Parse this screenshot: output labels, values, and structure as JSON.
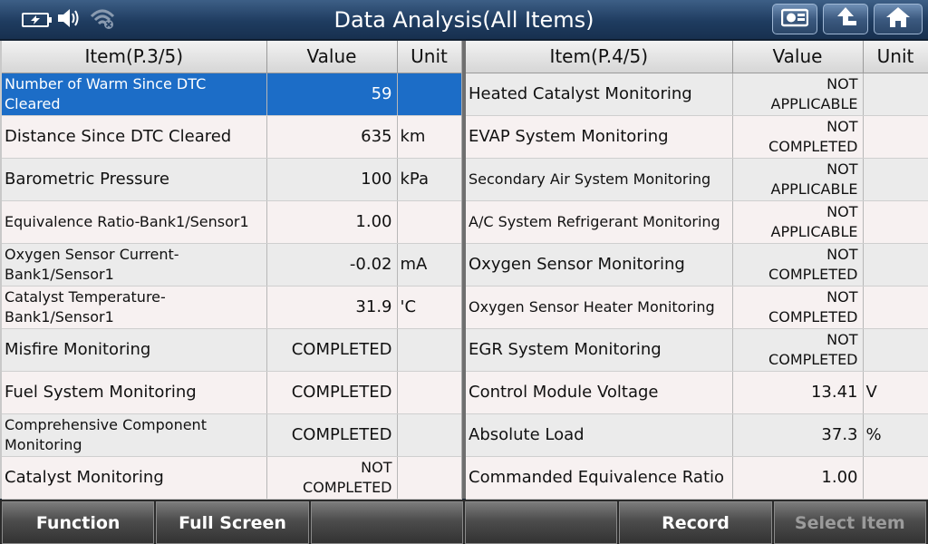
{
  "header": {
    "title": "Data Analysis(All Items)"
  },
  "left": {
    "columns": [
      "Item(P.3/5)",
      "Value",
      "Unit"
    ],
    "rows": [
      {
        "item": "Number of Warm Since DTC Cleared",
        "value": "59",
        "unit": ""
      },
      {
        "item": "Distance Since DTC Cleared",
        "value": "635",
        "unit": "km"
      },
      {
        "item": "Barometric Pressure",
        "value": "100",
        "unit": "kPa"
      },
      {
        "item": "Equivalence Ratio-Bank1/Sensor1",
        "value": "1.00",
        "unit": ""
      },
      {
        "item": "Oxygen Sensor Current-Bank1/Sensor1",
        "value": "-0.02",
        "unit": "mA"
      },
      {
        "item": "Catalyst Temperature-Bank1/Sensor1",
        "value": "31.9",
        "unit": "'C"
      },
      {
        "item": "Misfire Monitoring",
        "value": "COMPLETED",
        "unit": ""
      },
      {
        "item": "Fuel System Monitoring",
        "value": "COMPLETED",
        "unit": ""
      },
      {
        "item": "Comprehensive Component Monitoring",
        "value": "COMPLETED",
        "unit": ""
      },
      {
        "item": "Catalyst Monitoring",
        "value": "NOT COMPLETED",
        "unit": ""
      }
    ]
  },
  "right": {
    "columns": [
      "Item(P.4/5)",
      "Value",
      "Unit"
    ],
    "rows": [
      {
        "item": "Heated Catalyst Monitoring",
        "value": "NOT APPLICABLE",
        "unit": ""
      },
      {
        "item": "EVAP System Monitoring",
        "value": "NOT COMPLETED",
        "unit": ""
      },
      {
        "item": "Secondary Air System Monitoring",
        "value": "NOT APPLICABLE",
        "unit": ""
      },
      {
        "item": "A/C System Refrigerant Monitoring",
        "value": "NOT APPLICABLE",
        "unit": ""
      },
      {
        "item": "Oxygen Sensor Monitoring",
        "value": "NOT COMPLETED",
        "unit": ""
      },
      {
        "item": "Oxygen Sensor Heater Monitoring",
        "value": "NOT COMPLETED",
        "unit": ""
      },
      {
        "item": "EGR System Monitoring",
        "value": "NOT COMPLETED",
        "unit": ""
      },
      {
        "item": "Control Module Voltage",
        "value": "13.41",
        "unit": "V"
      },
      {
        "item": "Absolute Load",
        "value": "37.3",
        "unit": "%"
      },
      {
        "item": "Commanded Equivalence Ratio",
        "value": "1.00",
        "unit": ""
      }
    ]
  },
  "footer": {
    "buttons": [
      "Function",
      "Full Screen",
      "",
      "",
      "Record",
      "Select Item"
    ]
  },
  "icons": {
    "status": [
      "battery-icon",
      "speaker-icon",
      "wifi-icon"
    ],
    "header_buttons": [
      "screenshot-icon",
      "back-arrow-icon",
      "home-icon"
    ]
  },
  "colors": {
    "selected_row": "#1c6dc7",
    "title_bar": "#1f3c60"
  }
}
